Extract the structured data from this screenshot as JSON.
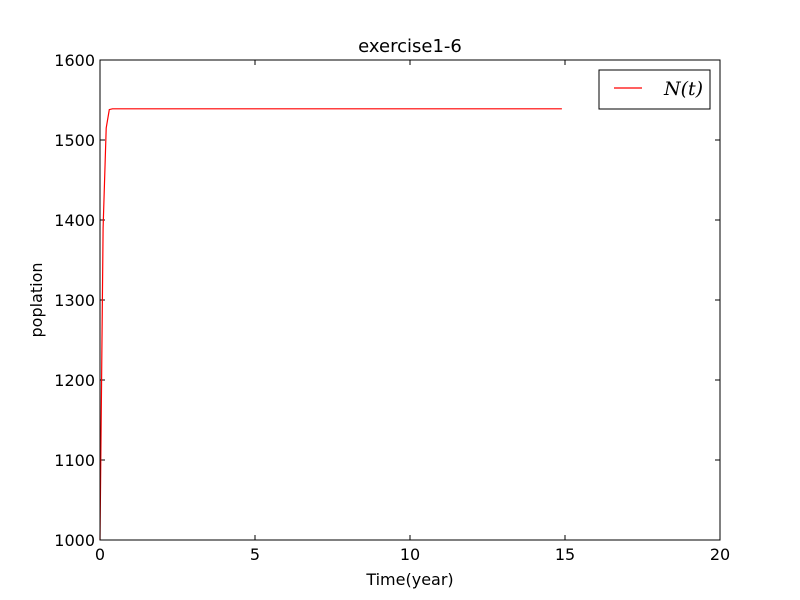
{
  "chart_data": {
    "type": "line",
    "title": "exercise1-6",
    "xlabel": "Time(year)",
    "ylabel": "poplation",
    "xlim": [
      0,
      20
    ],
    "ylim": [
      1000,
      1600
    ],
    "x_ticks": [
      "0",
      "5",
      "10",
      "15",
      "20"
    ],
    "y_ticks": [
      "1000",
      "1100",
      "1200",
      "1300",
      "1400",
      "1500",
      "1600"
    ],
    "grid": false,
    "legend_position": "top-right",
    "series": [
      {
        "name": "N(t)",
        "color": "#ff0000",
        "x": [
          0,
          0.1,
          0.2,
          0.3,
          0.4,
          1,
          2,
          5,
          10,
          14.9
        ],
        "y": [
          1000,
          1390,
          1515,
          1538,
          1539,
          1539,
          1539,
          1539,
          1539,
          1539
        ]
      }
    ]
  }
}
